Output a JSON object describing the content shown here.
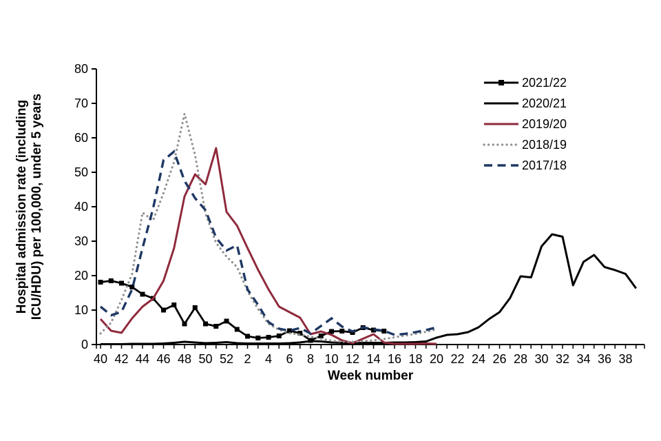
{
  "page": {
    "background": "#ffffff"
  },
  "chart_data": {
    "type": "line",
    "title": "",
    "xlabel": "Week number",
    "ylabel": "Hospital admission rate (including ICU/HDU) per 100,000, under 5 years",
    "grid": false,
    "legend_position": "top-right-inside",
    "x": {
      "label": "Week number",
      "weeks": [
        40,
        41,
        42,
        43,
        44,
        45,
        46,
        47,
        48,
        49,
        50,
        51,
        52,
        1,
        2,
        3,
        4,
        5,
        6,
        7,
        8,
        9,
        10,
        11,
        12,
        13,
        14,
        15,
        16,
        17,
        18,
        19,
        20,
        21,
        22,
        23,
        24,
        25,
        26,
        27,
        28,
        29,
        30,
        31,
        32,
        33,
        34,
        35,
        36,
        37,
        38,
        39
      ],
      "tick_labels": [
        "40",
        "42",
        "44",
        "46",
        "48",
        "50",
        "52",
        "2",
        "4",
        "6",
        "8",
        "10",
        "12",
        "14",
        "16",
        "18",
        "20",
        "22",
        "24",
        "26",
        "28",
        "30",
        "32",
        "34",
        "36",
        "38"
      ]
    },
    "y": {
      "label_line1": "Hospital admission rate (including",
      "label_line2": "ICU/HDU) per 100,000, under 5 years",
      "min": 0,
      "max": 80,
      "tick_step": 10,
      "ticks": [
        0,
        10,
        20,
        30,
        40,
        50,
        60,
        70,
        80
      ]
    },
    "legend": {
      "entries": [
        "2021/22",
        "2020/21",
        "2019/20",
        "2018/19",
        "2017/18"
      ]
    },
    "series": [
      {
        "name": "2021/22",
        "color": "#000000",
        "style": "solid",
        "marker": "square",
        "values": [
          18.1,
          18.5,
          17.8,
          16.7,
          14.6,
          13.4,
          10.0,
          11.5,
          6.0,
          10.7,
          6.0,
          5.3,
          6.8,
          4.4,
          2.4,
          1.9,
          2.1,
          2.5,
          4.0,
          3.3,
          1.2,
          2.5,
          3.8,
          3.9,
          3.5,
          4.9,
          4.2,
          3.9,
          null,
          null,
          null,
          null,
          null,
          null,
          null,
          null,
          null,
          null,
          null,
          null,
          null,
          null,
          null,
          null,
          null,
          null,
          null,
          null,
          null,
          null,
          null,
          null
        ]
      },
      {
        "name": "2020/21",
        "color": "#000000",
        "style": "solid",
        "marker": "none",
        "values": [
          0.1,
          0.1,
          0.1,
          0.2,
          0.2,
          0.2,
          0.3,
          0.5,
          0.8,
          0.6,
          0.4,
          0.5,
          0.7,
          0.4,
          0.3,
          0.3,
          0.3,
          0.3,
          0.4,
          0.6,
          1.0,
          0.9,
          0.6,
          0.5,
          0.4,
          0.5,
          0.5,
          0.5,
          0.6,
          0.6,
          0.7,
          0.9,
          2.0,
          2.8,
          3.0,
          3.6,
          5.0,
          7.4,
          9.4,
          13.5,
          19.8,
          19.5,
          28.5,
          32.0,
          31.3,
          17.2,
          24.0,
          26.0,
          22.5,
          21.6,
          20.5,
          16.3
        ]
      },
      {
        "name": "2019/20",
        "color": "#8f2a3c",
        "style": "solid",
        "marker": "none",
        "values": [
          7.4,
          4.0,
          3.4,
          7.6,
          11.0,
          13.3,
          18.5,
          28.0,
          43.0,
          49.4,
          46.5,
          57.0,
          38.5,
          34.5,
          28.0,
          21.7,
          16.0,
          11.0,
          9.4,
          7.8,
          3.0,
          3.8,
          2.8,
          1.2,
          0.4,
          1.7,
          3.0,
          0.6,
          0.2,
          0.2,
          0.2,
          0.3,
          0.2,
          null,
          null,
          null,
          null,
          null,
          null,
          null,
          null,
          null,
          null,
          null,
          null,
          null,
          null,
          null,
          null,
          null,
          null,
          null
        ]
      },
      {
        "name": "2018/19",
        "color": "#8f8f8f",
        "style": "dotted",
        "marker": "none",
        "values": [
          3.2,
          6.3,
          13.0,
          20.5,
          38.3,
          36.0,
          44.0,
          53.0,
          67.0,
          55.0,
          38.0,
          29.5,
          25.5,
          22.5,
          15.5,
          10.3,
          6.0,
          4.3,
          3.3,
          2.9,
          2.3,
          1.7,
          1.1,
          0.8,
          0.8,
          1.0,
          1.2,
          1.6,
          2.1,
          2.6,
          3.1,
          3.7,
          4.4,
          null,
          null,
          null,
          null,
          null,
          null,
          null,
          null,
          null,
          null,
          null,
          null,
          null,
          null,
          null,
          null,
          null,
          null,
          null
        ]
      },
      {
        "name": "2017/18",
        "color": "#1f3864",
        "style": "dashed",
        "marker": "none",
        "values": [
          11.0,
          8.5,
          9.5,
          16.0,
          28.0,
          39.5,
          53.5,
          56.0,
          47.5,
          42.5,
          39.0,
          31.0,
          27.3,
          28.8,
          16.0,
          11.5,
          6.5,
          4.6,
          4.0,
          4.8,
          3.2,
          5.4,
          7.6,
          5.2,
          3.8,
          5.0,
          4.4,
          4.0,
          2.8,
          3.1,
          3.6,
          4.2,
          5.0,
          null,
          null,
          null,
          null,
          null,
          null,
          null,
          null,
          null,
          null,
          null,
          null,
          null,
          null,
          null,
          null,
          null,
          null,
          null
        ]
      }
    ]
  }
}
